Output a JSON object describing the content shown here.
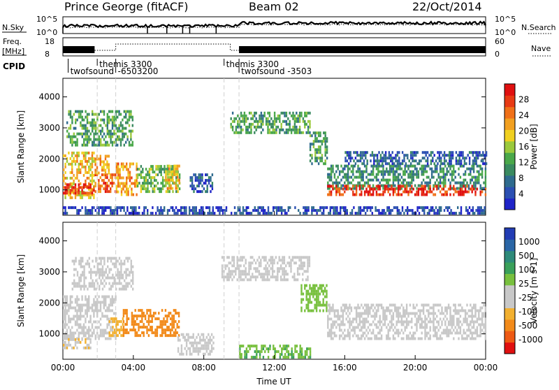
{
  "header": {
    "station": "Prince George (fitACF)",
    "beam": "Beam 02",
    "date": "22/Oct/2014"
  },
  "left_labels": {
    "nsky": "N.Sky",
    "freq_line1": "Freq.",
    "freq_line2": "[MHz]",
    "cpid": "CPID"
  },
  "right_labels": {
    "nsearch": "N.Search",
    "nave": "Nave"
  },
  "noise_axis": {
    "left_top": "10^5",
    "left_bottom": "10^0",
    "right_top": "10^5",
    "right_bottom": "10^0"
  },
  "freq_axis": {
    "left_top": "18",
    "left_bottom": "8",
    "right_top": "60",
    "right_bottom": "0"
  },
  "cpid_labels": [
    {
      "text": "twofsound",
      "t": 0.3,
      "row": 2
    },
    {
      "text": "themis 3300",
      "t": 1.95,
      "row": 1
    },
    {
      "text": "-6503200",
      "t": 3.0,
      "row": 2
    },
    {
      "text": "themis 3300",
      "t": 9.15,
      "row": 1
    },
    {
      "text": "twofsound -3503",
      "t": 10.0,
      "row": 2
    }
  ],
  "colors": {
    "power_scale": [
      "#1f24c8",
      "#2b4fb2",
      "#2f6b8e",
      "#3a8a60",
      "#4aa84a",
      "#9bc93c",
      "#f0d020",
      "#f2a020",
      "#f07018",
      "#e83a14",
      "#e01010"
    ],
    "velocity_scale": [
      "#223cb4",
      "#2a66a6",
      "#2e8a7a",
      "#3aa05a",
      "#78c03e",
      "#c8c8c8",
      "#c8c8c8",
      "#f2b030",
      "#f28a1a",
      "#ee5a14",
      "#e01010"
    ]
  },
  "chart_data": [
    {
      "type": "heatmap",
      "name": "power",
      "ylabel": "Slant Range [km]",
      "xlabel": "",
      "x_ticks": [
        "00:00",
        "04:00",
        "08:00",
        "12:00",
        "16:00",
        "20:00",
        "00:00"
      ],
      "xlim_hours": [
        0,
        24
      ],
      "y_ticks": [
        "1000",
        "2000",
        "3000",
        "4000"
      ],
      "ylim_km": [
        180,
        4600
      ],
      "colorbar": {
        "label": "Power [dB]",
        "ticks": [
          "4",
          "8",
          "12",
          "16",
          "20",
          "24",
          "28"
        ],
        "range": [
          0,
          32
        ]
      },
      "regions": [
        {
          "t0": 0.0,
          "t1": 1.8,
          "r0": 700,
          "r1": 2200,
          "value": 20
        },
        {
          "t0": 0.0,
          "t1": 1.8,
          "r0": 850,
          "r1": 1150,
          "value": 28
        },
        {
          "t0": 1.8,
          "t1": 3.0,
          "r0": 900,
          "r1": 1500,
          "value": 26
        },
        {
          "t0": 1.8,
          "t1": 2.6,
          "r0": 1500,
          "r1": 2100,
          "value": 22
        },
        {
          "t0": 3.0,
          "t1": 4.2,
          "r0": 800,
          "r1": 1800,
          "value": 22
        },
        {
          "t0": 4.2,
          "t1": 6.6,
          "r0": 900,
          "r1": 1800,
          "value": 14
        },
        {
          "t0": 5.8,
          "t1": 6.6,
          "r0": 1000,
          "r1": 1800,
          "value": 20
        },
        {
          "t0": 0.2,
          "t1": 4.0,
          "r0": 2400,
          "r1": 3500,
          "value": 12
        },
        {
          "t0": 7.2,
          "t1": 8.5,
          "r0": 900,
          "r1": 1500,
          "value": 6
        },
        {
          "t0": 9.5,
          "t1": 14.0,
          "r0": 2800,
          "r1": 3500,
          "value": 12
        },
        {
          "t0": 14.0,
          "t1": 15.0,
          "r0": 1800,
          "r1": 2800,
          "value": 12
        },
        {
          "t0": 15.0,
          "t1": 24.0,
          "r0": 1000,
          "r1": 1800,
          "value": 10
        },
        {
          "t0": 15.0,
          "t1": 24.0,
          "r0": 800,
          "r1": 1100,
          "value": 28
        },
        {
          "t0": 16.0,
          "t1": 24.0,
          "r0": 1800,
          "r1": 2200,
          "value": 6
        },
        {
          "t0": 0.0,
          "t1": 24.0,
          "r0": 200,
          "r1": 450,
          "value": 4
        }
      ]
    },
    {
      "type": "heatmap",
      "name": "velocity",
      "ylabel": "Slant Range [km]",
      "xlabel": "Time UT",
      "x_ticks": [
        "00:00",
        "04:00",
        "08:00",
        "12:00",
        "16:00",
        "20:00",
        "00:00"
      ],
      "xlim_hours": [
        0,
        24
      ],
      "y_ticks": [
        "1000",
        "2000",
        "3000",
        "4000"
      ],
      "ylim_km": [
        180,
        4600
      ],
      "colorbar": {
        "label": "Velocity [m s-1]",
        "ticks": [
          "1000",
          "500",
          "100",
          "25",
          "-25",
          "-100",
          "-500",
          "-1000"
        ],
        "range": [
          -1200,
          1200
        ]
      },
      "regions": [
        {
          "t0": 0.0,
          "t1": 3.0,
          "r0": 800,
          "r1": 2200,
          "value": 0
        },
        {
          "t0": 0.0,
          "t1": 1.6,
          "r0": 500,
          "r1": 800,
          "value": -300
        },
        {
          "t0": 2.6,
          "t1": 3.4,
          "r0": 900,
          "r1": 1500,
          "value": -400
        },
        {
          "t0": 3.4,
          "t1": 6.6,
          "r0": 900,
          "r1": 1800,
          "value": -700
        },
        {
          "t0": 0.5,
          "t1": 4.0,
          "r0": 2400,
          "r1": 3400,
          "value": 0
        },
        {
          "t0": 9.0,
          "t1": 14.0,
          "r0": 2700,
          "r1": 3500,
          "value": 0
        },
        {
          "t0": 13.5,
          "t1": 15.0,
          "r0": 1700,
          "r1": 2600,
          "value": 200
        },
        {
          "t0": 15.0,
          "t1": 24.0,
          "r0": 800,
          "r1": 1900,
          "value": 0
        },
        {
          "t0": 6.5,
          "t1": 8.5,
          "r0": 300,
          "r1": 1000,
          "value": 0
        },
        {
          "t0": 10.0,
          "t1": 14.0,
          "r0": 200,
          "r1": 600,
          "value": 300
        }
      ]
    }
  ]
}
